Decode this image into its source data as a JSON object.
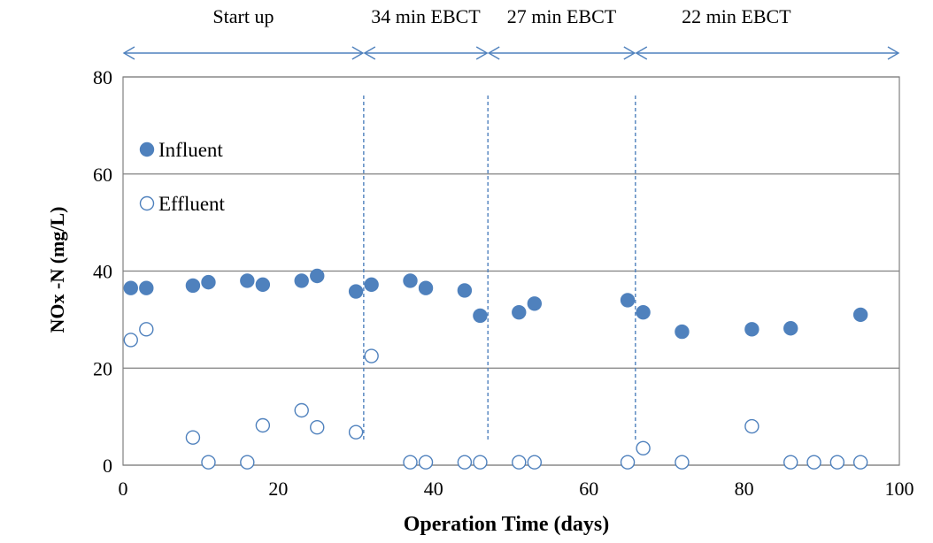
{
  "chart_data": {
    "type": "scatter",
    "xlabel": "Operation Time (days)",
    "ylabel": "NOx -N (mg/L)",
    "xlim": [
      0,
      100
    ],
    "ylim": [
      0,
      80
    ],
    "x_ticks": [
      "0",
      "20",
      "40",
      "60",
      "80",
      "100"
    ],
    "y_ticks": [
      "0",
      "20",
      "40",
      "60",
      "80"
    ],
    "grid": "horizontal",
    "legend_position": "top-left",
    "colors": {
      "influent": "#4f81bd",
      "effluent": "#4f81bd",
      "grid": "#808080"
    },
    "phases": [
      {
        "label": "Start up",
        "start": 0,
        "end": 31
      },
      {
        "label": "34 min EBCT",
        "start": 31,
        "end": 47
      },
      {
        "label": "27 min EBCT",
        "start": 47,
        "end": 66
      },
      {
        "label": "22 min EBCT",
        "start": 66,
        "end": 100
      }
    ],
    "divider_days": [
      31,
      47,
      66
    ],
    "series": [
      {
        "name": "Influent",
        "marker": "filled-circle",
        "x": [
          1,
          3,
          9,
          11,
          16,
          18,
          23,
          25,
          30,
          32,
          37,
          39,
          44,
          46,
          51,
          53,
          65,
          67,
          72,
          81,
          86,
          95
        ],
        "y": [
          36.5,
          36.5,
          37,
          37.7,
          38,
          37.2,
          38,
          39,
          35.8,
          37.2,
          38,
          36.5,
          36,
          30.8,
          31.5,
          33.3,
          34,
          31.5,
          27.5,
          28,
          28.2,
          31
        ]
      },
      {
        "name": "Effluent",
        "marker": "open-circle",
        "x": [
          1,
          3,
          9,
          11,
          16,
          18,
          23,
          25,
          30,
          32,
          37,
          39,
          44,
          46,
          51,
          53,
          65,
          67,
          72,
          81,
          86,
          89,
          92,
          95
        ],
        "y": [
          25.8,
          28,
          5.7,
          0.6,
          0.6,
          8.2,
          11.3,
          7.8,
          6.8,
          22.5,
          0.6,
          0.6,
          0.6,
          0.6,
          0.6,
          0.6,
          0.6,
          3.5,
          0.6,
          8,
          0.6,
          0.6,
          0.6,
          0.6
        ]
      }
    ]
  }
}
